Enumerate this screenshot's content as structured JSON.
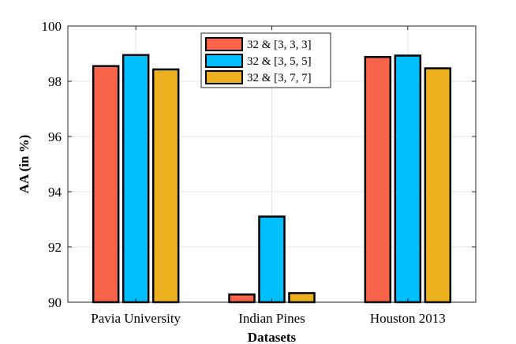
{
  "chart_data": {
    "type": "bar",
    "title": "",
    "xlabel": "Datasets",
    "ylabel": "AA (in %)",
    "ylim": [
      90,
      100
    ],
    "yticks": [
      90,
      92,
      94,
      96,
      98,
      100
    ],
    "grid": true,
    "legend_position": "top-center",
    "categories": [
      "Pavia University",
      "Indian Pines",
      "Houston 2013"
    ],
    "series": [
      {
        "name": "32 & [3, 3, 3]",
        "color": "#f8634a",
        "values": [
          98.55,
          90.28,
          98.88
        ]
      },
      {
        "name": "32 & [3, 5, 5]",
        "color": "#00bfff",
        "values": [
          98.95,
          93.1,
          98.93
        ]
      },
      {
        "name": "32 & [3, 7, 7]",
        "color": "#ecb01f",
        "values": [
          98.43,
          90.33,
          98.47
        ]
      }
    ]
  }
}
